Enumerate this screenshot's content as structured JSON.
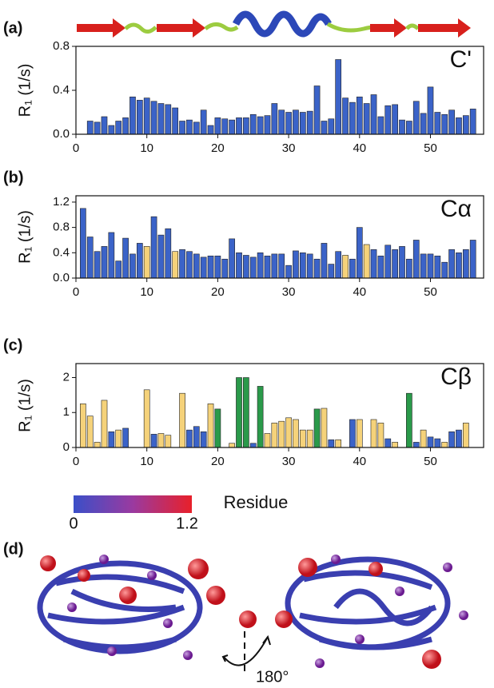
{
  "chart_data": [
    {
      "type": "bar",
      "panel_label": "(a)",
      "label": "C'",
      "y_label": "R₁ (1/s)",
      "x": [
        2,
        3,
        4,
        5,
        6,
        7,
        8,
        9,
        10,
        11,
        12,
        13,
        14,
        15,
        16,
        17,
        18,
        19,
        20,
        21,
        22,
        23,
        24,
        25,
        26,
        27,
        28,
        29,
        30,
        31,
        32,
        33,
        34,
        35,
        36,
        37,
        38,
        39,
        40,
        41,
        42,
        43,
        44,
        45,
        46,
        47,
        48,
        49,
        50,
        51,
        52,
        53,
        54,
        55,
        56
      ],
      "values": [
        0.12,
        0.11,
        0.16,
        0.08,
        0.12,
        0.15,
        0.34,
        0.31,
        0.33,
        0.3,
        0.28,
        0.27,
        0.24,
        0.12,
        0.13,
        0.11,
        0.22,
        0.08,
        0.15,
        0.14,
        0.13,
        0.15,
        0.15,
        0.18,
        0.16,
        0.17,
        0.28,
        0.22,
        0.2,
        0.22,
        0.2,
        0.21,
        0.44,
        0.12,
        0.14,
        0.68,
        0.33,
        0.29,
        0.34,
        0.28,
        0.36,
        0.16,
        0.26,
        0.27,
        0.13,
        0.12,
        0.3,
        0.19,
        0.43,
        0.2,
        0.18,
        0.22,
        0.15,
        0.17,
        0.23
      ],
      "color": "#3b63c8",
      "xlim": [
        0,
        57.5
      ],
      "xticks": [
        0,
        10,
        20,
        30,
        40,
        50
      ],
      "ylim": [
        0,
        0.8
      ],
      "yticks": [
        {
          "value": 0,
          "label": "0.0"
        },
        {
          "value": 0.4,
          "label": "0.4"
        },
        {
          "value": 0.8,
          "label": "0.8"
        }
      ]
    },
    {
      "type": "bar",
      "panel_label": "(b)",
      "label": "Cα",
      "y_label": "R₁ (1/s)",
      "x": [
        1,
        2,
        3,
        4,
        5,
        6,
        7,
        8,
        9,
        10,
        11,
        12,
        13,
        14,
        15,
        16,
        17,
        18,
        19,
        20,
        21,
        22,
        23,
        24,
        25,
        26,
        27,
        28,
        29,
        30,
        31,
        32,
        33,
        34,
        35,
        36,
        37,
        38,
        39,
        40,
        41,
        42,
        43,
        44,
        45,
        46,
        47,
        48,
        49,
        50,
        51,
        52,
        53,
        54,
        55,
        56
      ],
      "values": [
        1.1,
        0.65,
        0.42,
        0.5,
        0.72,
        0.27,
        0.63,
        0.38,
        0.55,
        0.5,
        0.97,
        0.68,
        0.78,
        0.42,
        0.45,
        0.42,
        0.38,
        0.33,
        0.35,
        0.35,
        0.3,
        0.62,
        0.4,
        0.36,
        0.33,
        0.4,
        0.35,
        0.38,
        0.38,
        0.2,
        0.43,
        0.4,
        0.38,
        0.3,
        0.55,
        0.22,
        0.42,
        0.36,
        0.3,
        0.8,
        0.53,
        0.45,
        0.35,
        0.52,
        0.45,
        0.5,
        0.3,
        0.6,
        0.38,
        0.38,
        0.35,
        0.25,
        0.45,
        0.4,
        0.45,
        0.6
      ],
      "colors": [
        "#3b63c8",
        "#3b63c8",
        "#3b63c8",
        "#3b63c8",
        "#3b63c8",
        "#3b63c8",
        "#3b63c8",
        "#3b63c8",
        "#3b63c8",
        "#f5d27a",
        "#3b63c8",
        "#3b63c8",
        "#3b63c8",
        "#f5d27a",
        "#3b63c8",
        "#3b63c8",
        "#3b63c8",
        "#3b63c8",
        "#3b63c8",
        "#3b63c8",
        "#3b63c8",
        "#3b63c8",
        "#3b63c8",
        "#3b63c8",
        "#3b63c8",
        "#3b63c8",
        "#3b63c8",
        "#3b63c8",
        "#3b63c8",
        "#3b63c8",
        "#3b63c8",
        "#3b63c8",
        "#3b63c8",
        "#3b63c8",
        "#3b63c8",
        "#3b63c8",
        "#3b63c8",
        "#f5d27a",
        "#3b63c8",
        "#3b63c8",
        "#f5d27a",
        "#3b63c8",
        "#3b63c8",
        "#3b63c8",
        "#3b63c8",
        "#3b63c8",
        "#3b63c8",
        "#3b63c8",
        "#3b63c8",
        "#3b63c8",
        "#3b63c8",
        "#3b63c8",
        "#3b63c8",
        "#3b63c8",
        "#3b63c8",
        "#3b63c8"
      ],
      "xlim": [
        0,
        57.5
      ],
      "xticks": [
        0,
        10,
        20,
        30,
        40,
        50
      ],
      "ylim": [
        0,
        1.3
      ],
      "yticks": [
        {
          "value": 0,
          "label": "0.0"
        },
        {
          "value": 0.4,
          "label": "0.4"
        },
        {
          "value": 0.8,
          "label": "0.8"
        },
        {
          "value": 1.2,
          "label": "1.2"
        }
      ]
    },
    {
      "type": "bar",
      "panel_label": "(c)",
      "label": "Cβ",
      "y_label": "R₁ (1/s)",
      "x_label": "Residue",
      "x": [
        1,
        2,
        3,
        4,
        5,
        6,
        7,
        8,
        9,
        10,
        11,
        12,
        13,
        14,
        15,
        16,
        17,
        18,
        19,
        20,
        21,
        22,
        23,
        24,
        25,
        26,
        27,
        28,
        29,
        30,
        31,
        32,
        33,
        34,
        35,
        36,
        37,
        38,
        39,
        40,
        41,
        42,
        43,
        44,
        45,
        46,
        47,
        48,
        49,
        50,
        51,
        52,
        53,
        54,
        55,
        56
      ],
      "values": [
        1.25,
        0.9,
        0.15,
        1.35,
        0.45,
        0.5,
        0.55,
        null,
        null,
        1.65,
        0.38,
        0.4,
        0.35,
        null,
        1.55,
        0.5,
        0.6,
        0.45,
        1.25,
        1.1,
        null,
        0.12,
        2.0,
        2.0,
        0.12,
        1.75,
        0.4,
        0.7,
        0.75,
        0.85,
        0.8,
        0.5,
        0.5,
        1.1,
        1.12,
        0.22,
        0.22,
        null,
        0.8,
        0.8,
        null,
        0.8,
        0.7,
        0.25,
        0.15,
        null,
        1.55,
        0.15,
        0.5,
        0.3,
        0.25,
        0.15,
        0.45,
        0.5,
        0.7,
        null
      ],
      "colors": [
        "#f5d27a",
        "#f5d27a",
        "#f5d27a",
        "#f5d27a",
        "#3b63c8",
        "#f5d27a",
        "#3b63c8",
        null,
        null,
        "#f5d27a",
        "#3b63c8",
        "#f5d27a",
        "#f5d27a",
        null,
        "#f5d27a",
        "#3b63c8",
        "#3b63c8",
        "#3b63c8",
        "#f5d27a",
        "#2a9a4a",
        null,
        "#f5d27a",
        "#2a9a4a",
        "#2a9a4a",
        "#3b63c8",
        "#2a9a4a",
        "#f5d27a",
        "#f5d27a",
        "#f5d27a",
        "#f5d27a",
        "#f5d27a",
        "#f5d27a",
        "#f5d27a",
        "#2a9a4a",
        "#f5d27a",
        "#3b63c8",
        "#f5d27a",
        null,
        "#3b63c8",
        "#f5d27a",
        null,
        "#f5d27a",
        "#f5d27a",
        "#3b63c8",
        "#f5d27a",
        null,
        "#2a9a4a",
        "#3b63c8",
        "#f5d27a",
        "#3b63c8",
        "#3b63c8",
        "#f5d27a",
        "#3b63c8",
        "#3b63c8",
        "#f5d27a",
        null
      ],
      "xlim": [
        0,
        57.5
      ],
      "xticks": [
        0,
        10,
        20,
        30,
        40,
        50
      ],
      "ylim": [
        0,
        2.4
      ],
      "yticks": [
        0,
        1,
        2
      ]
    }
  ],
  "panel_d": {
    "label": "(d)",
    "colorbar_min": "0",
    "colorbar_max": "1.2",
    "rotation": "180°"
  }
}
